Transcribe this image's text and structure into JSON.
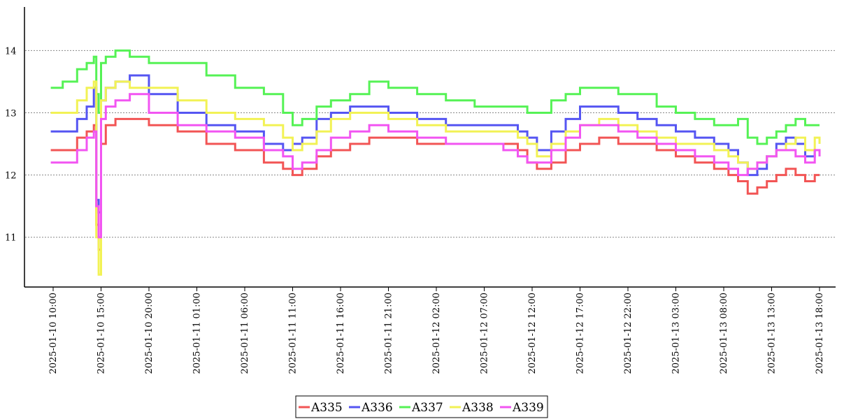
{
  "chart_data": {
    "type": "line",
    "title": "",
    "xlabel": "",
    "ylabel": "",
    "ylim": [
      10.2,
      14.7
    ],
    "yticks": [
      11,
      12,
      13,
      14
    ],
    "xlim": [
      "2025-01-10 07:30",
      "2025-01-13 19:00"
    ],
    "xticks": [
      "2025-01-10 10:00",
      "2025-01-10 15:00",
      "2025-01-10 20:00",
      "2025-01-11 01:00",
      "2025-01-11 06:00",
      "2025-01-11 11:00",
      "2025-01-11 16:00",
      "2025-01-11 21:00",
      "2025-01-12 02:00",
      "2025-01-12 07:00",
      "2025-01-12 12:00",
      "2025-01-12 17:00",
      "2025-01-12 22:00",
      "2025-01-13 03:00",
      "2025-01-13 08:00",
      "2025-01-13 13:00",
      "2025-01-13 18:00"
    ],
    "grid": "horizontal-dotted",
    "legend": "bottom-center",
    "x": [
      "2025-01-10 09:45",
      "2025-01-10 11:00",
      "2025-01-10 12:30",
      "2025-01-10 13:30",
      "2025-01-10 14:15",
      "2025-01-10 14:30",
      "2025-01-10 14:45",
      "2025-01-10 15:00",
      "2025-01-10 15:30",
      "2025-01-10 16:30",
      "2025-01-10 18:00",
      "2025-01-10 20:00",
      "2025-01-10 23:00",
      "2025-01-11 02:00",
      "2025-01-11 05:00",
      "2025-01-11 08:00",
      "2025-01-11 10:00",
      "2025-01-11 11:00",
      "2025-01-11 12:00",
      "2025-01-11 13:30",
      "2025-01-11 15:00",
      "2025-01-11 17:00",
      "2025-01-11 19:00",
      "2025-01-11 21:00",
      "2025-01-12 00:00",
      "2025-01-12 03:00",
      "2025-01-12 06:00",
      "2025-01-12 09:00",
      "2025-01-12 10:30",
      "2025-01-12 11:30",
      "2025-01-12 12:30",
      "2025-01-12 14:00",
      "2025-01-12 15:30",
      "2025-01-12 17:00",
      "2025-01-12 19:00",
      "2025-01-12 21:00",
      "2025-01-12 23:00",
      "2025-01-13 01:00",
      "2025-01-13 03:00",
      "2025-01-13 05:00",
      "2025-01-13 07:00",
      "2025-01-13 08:30",
      "2025-01-13 09:30",
      "2025-01-13 10:30",
      "2025-01-13 11:30",
      "2025-01-13 12:30",
      "2025-01-13 13:30",
      "2025-01-13 14:30",
      "2025-01-13 15:30",
      "2025-01-13 16:30",
      "2025-01-13 17:30",
      "2025-01-13 18:00"
    ],
    "series": [
      {
        "name": "A335",
        "color": "#f25555",
        "values": [
          12.4,
          12.4,
          12.6,
          12.7,
          12.8,
          11.2,
          10.8,
          12.5,
          12.8,
          12.9,
          12.9,
          12.8,
          12.7,
          12.5,
          12.4,
          12.2,
          12.1,
          12.0,
          12.1,
          12.3,
          12.4,
          12.5,
          12.6,
          12.6,
          12.5,
          12.5,
          12.5,
          12.5,
          12.4,
          12.2,
          12.1,
          12.2,
          12.4,
          12.5,
          12.6,
          12.5,
          12.5,
          12.4,
          12.3,
          12.2,
          12.1,
          12.0,
          11.9,
          11.7,
          11.8,
          11.9,
          12.0,
          12.1,
          12.0,
          11.9,
          12.0,
          12.0
        ]
      },
      {
        "name": "A336",
        "color": "#5555f2",
        "values": [
          12.7,
          12.7,
          12.9,
          13.1,
          13.4,
          11.6,
          11.4,
          13.2,
          13.4,
          13.5,
          13.6,
          13.3,
          13.0,
          12.8,
          12.7,
          12.5,
          12.4,
          12.5,
          12.6,
          12.9,
          13.0,
          13.1,
          13.1,
          13.0,
          12.9,
          12.8,
          12.8,
          12.8,
          12.7,
          12.6,
          12.4,
          12.7,
          12.9,
          13.1,
          13.1,
          13.0,
          12.9,
          12.8,
          12.7,
          12.6,
          12.5,
          12.4,
          12.2,
          12.0,
          12.1,
          12.3,
          12.5,
          12.6,
          12.5,
          12.3,
          12.4,
          12.3
        ]
      },
      {
        "name": "A337",
        "color": "#55f255",
        "values": [
          13.4,
          13.5,
          13.7,
          13.8,
          13.9,
          13.3,
          13.0,
          13.8,
          13.9,
          14.0,
          13.9,
          13.8,
          13.8,
          13.6,
          13.4,
          13.3,
          13.0,
          12.8,
          12.9,
          13.1,
          13.2,
          13.3,
          13.5,
          13.4,
          13.3,
          13.2,
          13.1,
          13.1,
          13.1,
          13.0,
          13.0,
          13.2,
          13.3,
          13.4,
          13.4,
          13.3,
          13.3,
          13.1,
          13.0,
          12.9,
          12.8,
          12.8,
          12.9,
          12.6,
          12.5,
          12.6,
          12.7,
          12.8,
          12.9,
          12.8,
          12.8,
          12.8
        ]
      },
      {
        "name": "A338",
        "color": "#f2f255",
        "values": [
          13.0,
          13.0,
          13.2,
          13.4,
          13.5,
          11.0,
          10.4,
          13.2,
          13.4,
          13.5,
          13.4,
          13.4,
          13.2,
          13.0,
          12.9,
          12.8,
          12.6,
          12.4,
          12.5,
          12.7,
          12.9,
          13.0,
          13.0,
          12.9,
          12.8,
          12.7,
          12.7,
          12.7,
          12.6,
          12.5,
          12.3,
          12.5,
          12.7,
          12.8,
          12.9,
          12.8,
          12.7,
          12.6,
          12.5,
          12.5,
          12.4,
          12.3,
          12.2,
          12.1,
          12.2,
          12.3,
          12.4,
          12.5,
          12.6,
          12.4,
          12.6,
          12.5
        ]
      },
      {
        "name": "A339",
        "color": "#f255f2",
        "values": [
          12.2,
          12.2,
          12.4,
          12.6,
          12.7,
          11.5,
          11.0,
          12.9,
          13.1,
          13.2,
          13.3,
          13.0,
          12.8,
          12.7,
          12.6,
          12.4,
          12.3,
          12.1,
          12.2,
          12.4,
          12.6,
          12.7,
          12.8,
          12.7,
          12.6,
          12.5,
          12.5,
          12.4,
          12.3,
          12.2,
          12.2,
          12.4,
          12.6,
          12.8,
          12.8,
          12.7,
          12.6,
          12.5,
          12.4,
          12.3,
          12.2,
          12.1,
          12.0,
          12.1,
          12.2,
          12.3,
          12.4,
          12.4,
          12.3,
          12.2,
          12.4,
          12.3
        ]
      }
    ]
  }
}
